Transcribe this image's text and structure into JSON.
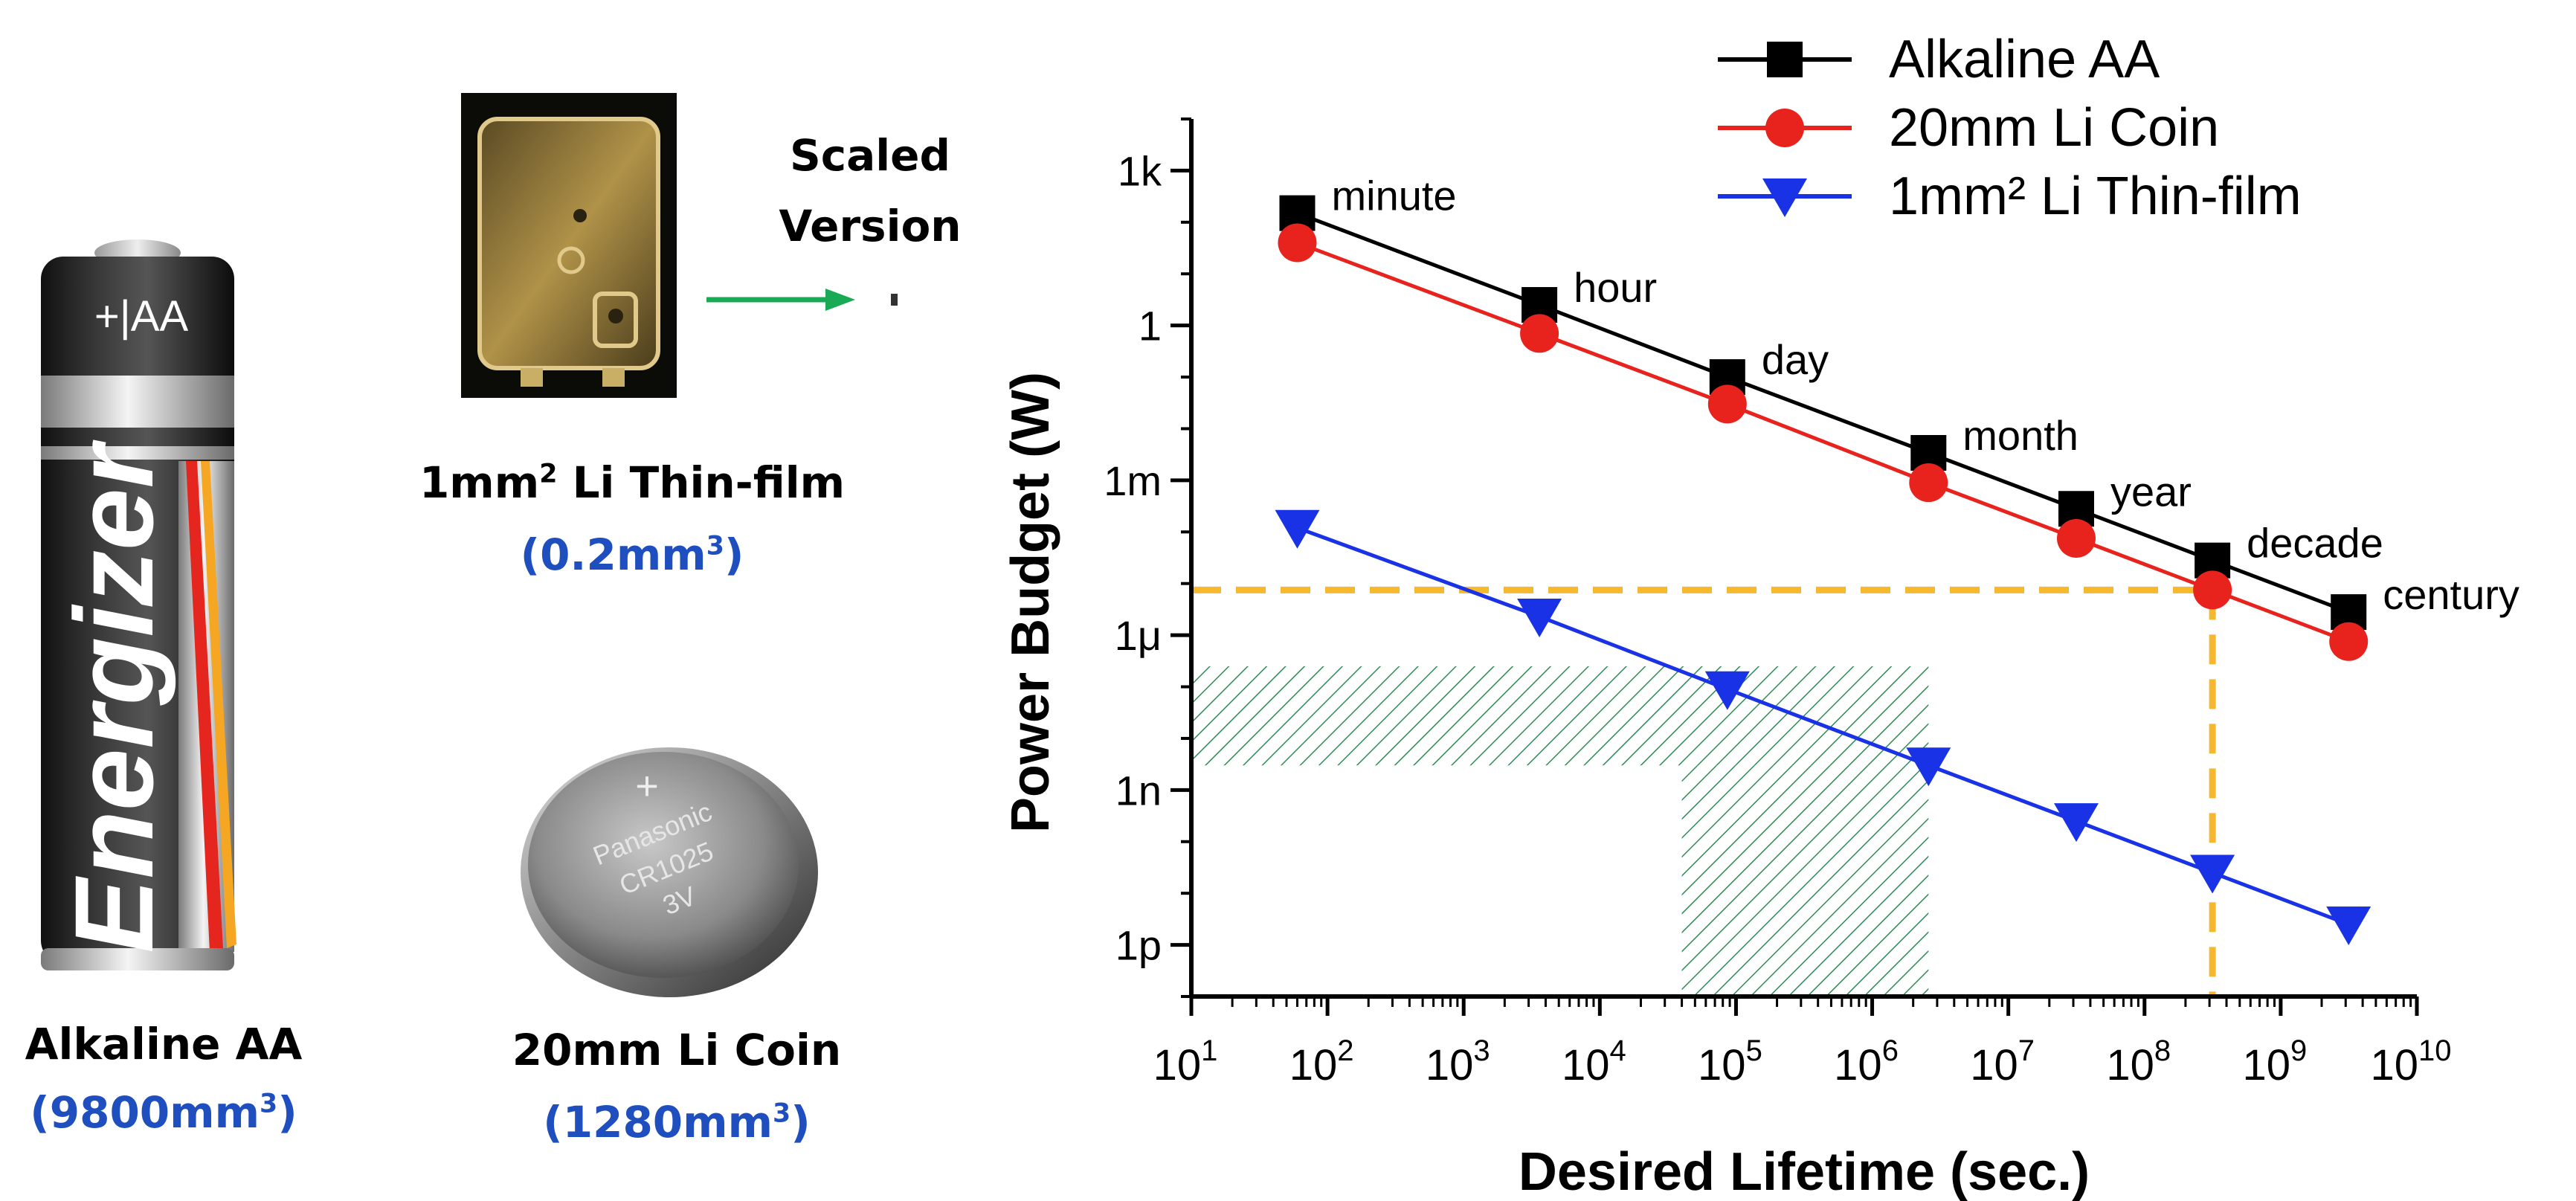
{
  "batteries": {
    "alkaline": {
      "name": "Alkaline AA",
      "volume": "(9800mm",
      "volume_exp": "3",
      "volume_end": ")",
      "text_top": "+|AA",
      "brand": "Energizer"
    },
    "coin": {
      "name": "20mm Li Coin",
      "volume": "(1280mm",
      "volume_exp": "3",
      "volume_end": ")",
      "text_line1": "Panasonic",
      "text_line2": "CR1025",
      "text_line3": "3V"
    },
    "thinfilm": {
      "name_a": "1mm",
      "name_exp": "2",
      "name_b": " Li Thin-film",
      "volume": "(0.2mm",
      "volume_exp": "3",
      "volume_end": ")"
    },
    "scaled_line1": "Scaled",
    "scaled_line2": "Version"
  },
  "colors": {
    "alkaline": "#000000",
    "coin": "#e8231e",
    "thinfilm": "#1a32e6",
    "highlight": "#f5b82e",
    "hatch": "#2e8b57",
    "arrow": "#1aaa55",
    "label_blue": "#1f4fbf"
  },
  "chart_data": {
    "type": "line",
    "x_scale": "log",
    "y_scale": "log",
    "xlabel": "Desired Lifetime (sec.)",
    "ylabel": "Power Budget (W)",
    "xlim": [
      10,
      10000000000
    ],
    "ylim": [
      1e-13,
      10000
    ],
    "x_ticks": [
      {
        "value": 10,
        "base": "10",
        "exp": "1"
      },
      {
        "value": 100,
        "base": "10",
        "exp": "2"
      },
      {
        "value": 1000,
        "base": "10",
        "exp": "3"
      },
      {
        "value": 10000,
        "base": "10",
        "exp": "4"
      },
      {
        "value": 100000,
        "base": "10",
        "exp": "5"
      },
      {
        "value": 1000000,
        "base": "10",
        "exp": "6"
      },
      {
        "value": 10000000,
        "base": "10",
        "exp": "7"
      },
      {
        "value": 100000000,
        "base": "10",
        "exp": "8"
      },
      {
        "value": 1000000000,
        "base": "10",
        "exp": "9"
      },
      {
        "value": 10000000000,
        "base": "10",
        "exp": "10"
      }
    ],
    "y_ticks": [
      {
        "value": 1000,
        "label": "1k"
      },
      {
        "value": 1,
        "label": "1"
      },
      {
        "value": 0.001,
        "label": "1m"
      },
      {
        "value": 1e-06,
        "label": "1μ"
      },
      {
        "value": 1e-09,
        "label": "1n"
      },
      {
        "value": 1e-12,
        "label": "1p"
      }
    ],
    "point_labels": [
      "minute",
      "hour",
      "day",
      "month",
      "year",
      "decade",
      "century"
    ],
    "x": [
      60,
      3600,
      86400,
      2592000,
      31536000,
      315360000,
      3153600000
    ],
    "series": [
      {
        "name": "Alkaline AA",
        "marker": "square",
        "values": [
          150,
          2.5,
          0.1,
          0.0034,
          0.00028,
          2.8e-05,
          2.8e-06
        ]
      },
      {
        "name": "20mm Li Coin",
        "marker": "circle",
        "values": [
          40,
          0.7,
          0.03,
          0.0009,
          7.5e-05,
          7.5e-06,
          7.5e-07
        ]
      },
      {
        "name": "1mm² Li Thin-film",
        "marker": "triangle-down",
        "values": [
          0.00012,
          2.3e-06,
          9e-08,
          3e-09,
          2.5e-10,
          2.5e-11,
          2.5e-12
        ]
      }
    ],
    "highlight": {
      "x": 315360000,
      "y": 7.5e-06
    },
    "shaded_regions": [
      {
        "x0": 10,
        "x1": 2592000,
        "y0": 3e-09,
        "y1": 2.5e-07
      },
      {
        "x0": 40000,
        "x1": 2592000,
        "y0": 1e-13,
        "y1": 3e-09
      }
    ],
    "legend_position": "top-right"
  }
}
